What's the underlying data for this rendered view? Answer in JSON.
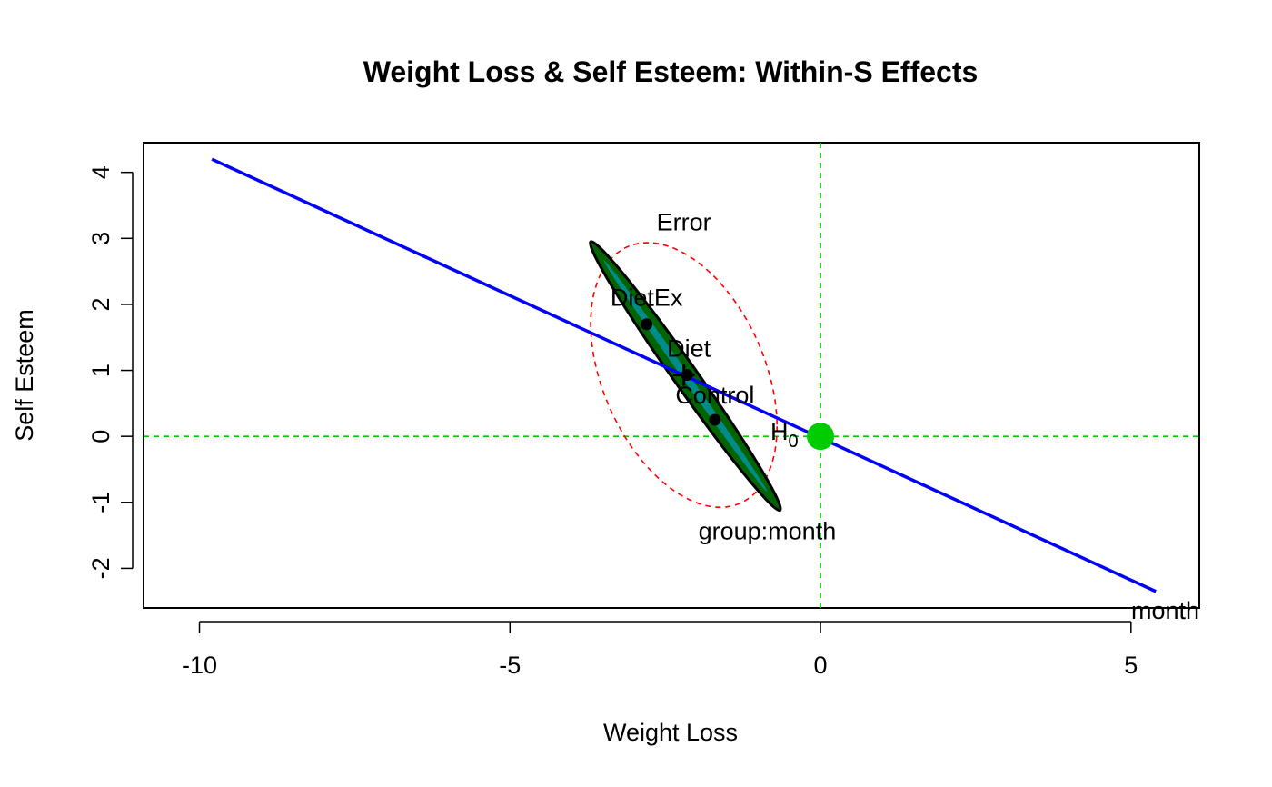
{
  "chart_data": {
    "type": "scatter",
    "title": "Weight Loss & Self Esteem: Within-S Effects",
    "xlabel": "Weight Loss",
    "ylabel": "Self Esteem",
    "xlim": [
      -10.9,
      6.1
    ],
    "ylim": [
      -2.6,
      4.45
    ],
    "xticks": [
      -10,
      -5,
      0,
      5
    ],
    "yticks": [
      -2,
      -1,
      0,
      1,
      2,
      3,
      4
    ],
    "grid": false,
    "reference_lines": {
      "x": 0,
      "y": 0,
      "color": "#00cc00",
      "style": "dashed"
    },
    "hypothesis_point": {
      "label": "H",
      "subscript": "0",
      "x": 0,
      "y": 0,
      "color": "#00cc00"
    },
    "grand_mean": {
      "x": -2.2,
      "y": 0.93
    },
    "error_ellipse": {
      "label": "Error",
      "color": "#ff0000",
      "style": "dashed",
      "center": [
        -2.2,
        0.93
      ],
      "x_extent": [
        -3.7,
        -0.7
      ],
      "y_extent": [
        -1.08,
        2.93
      ]
    },
    "group_month_ellipse": {
      "label": "group:month",
      "color": "#000000",
      "fill": "#006400",
      "endpoints": [
        [
          -3.7,
          2.95
        ],
        [
          -0.65,
          -1.12
        ]
      ]
    },
    "month_line": {
      "label": "month",
      "color": "#0000ff",
      "endpoints": [
        [
          -9.8,
          4.2
        ],
        [
          5.4,
          -2.35
        ]
      ]
    },
    "group_means": [
      {
        "label": "DietEx",
        "x": -2.8,
        "y": 1.7
      },
      {
        "label": "Diet",
        "x": -2.15,
        "y": 0.93
      },
      {
        "label": "Control",
        "x": -1.7,
        "y": 0.25
      }
    ]
  }
}
